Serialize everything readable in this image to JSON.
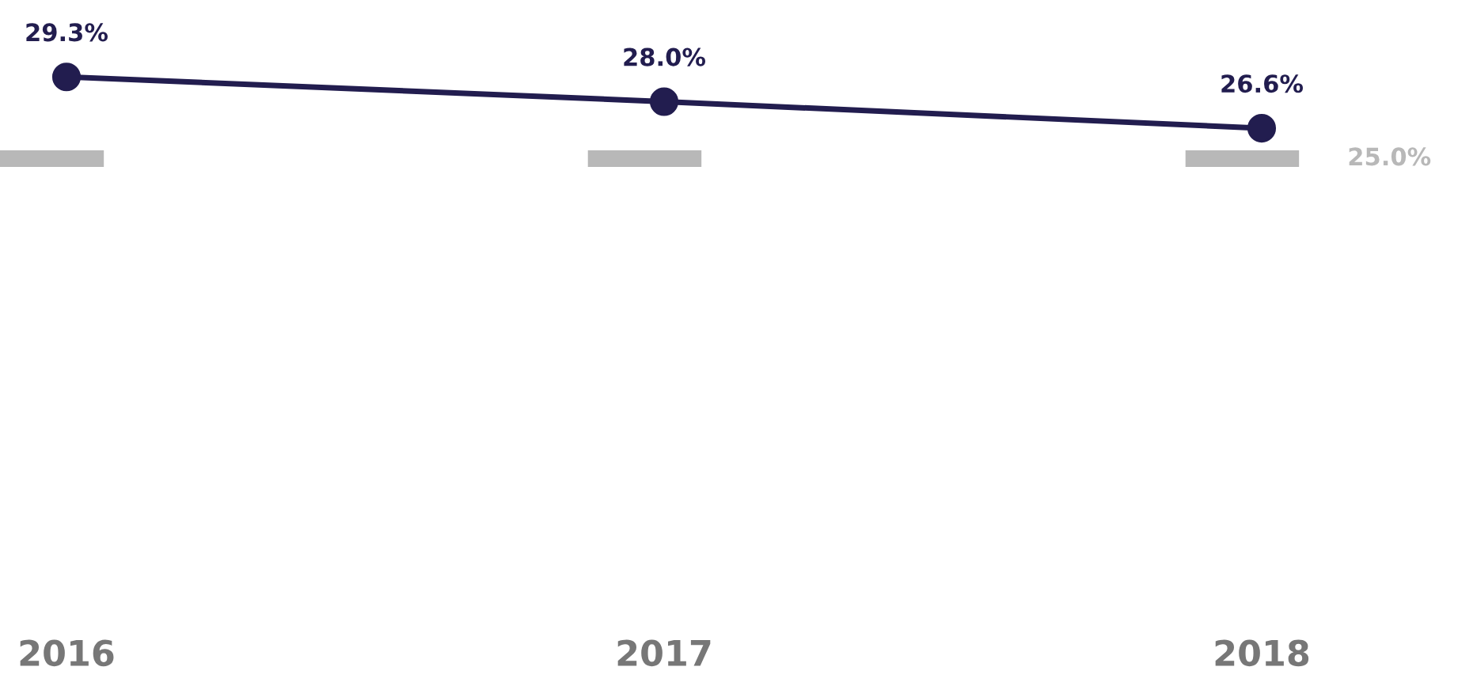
{
  "chart_data": {
    "type": "line",
    "categories": [
      "2016",
      "2017",
      "2018"
    ],
    "line_style": "solid",
    "grid": false,
    "legend": false,
    "data_labels": true,
    "series": [
      {
        "marker": "circle",
        "color": "#221d4f",
        "values": [
          29.3,
          28.0,
          26.6
        ],
        "value_labels": [
          "29.3%",
          "28.0%",
          "26.6%"
        ]
      }
    ],
    "ref_lines": [
      {
        "axis": "y",
        "value": 25.0,
        "label": "25.0%",
        "color": "#b8b8b8",
        "line_style": "dashed"
      }
    ]
  }
}
